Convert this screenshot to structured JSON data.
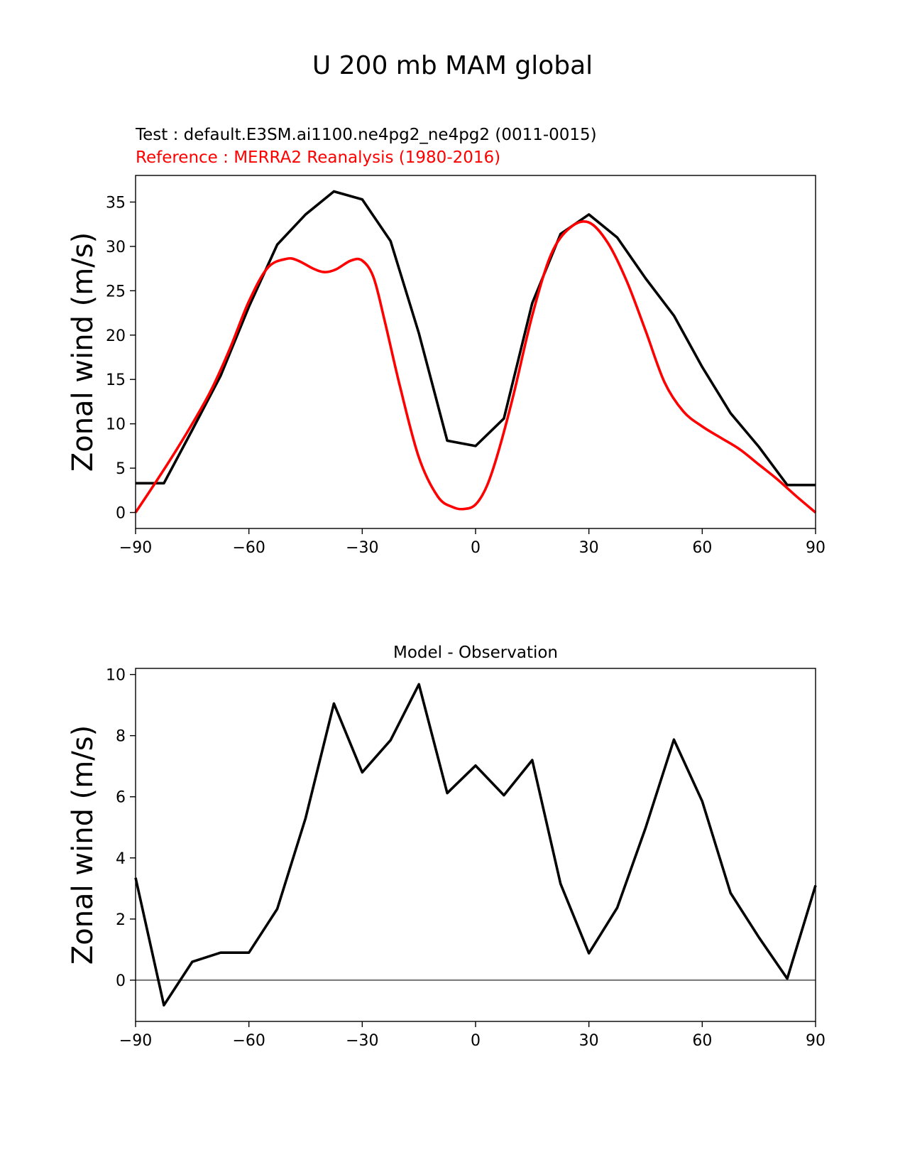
{
  "figure": {
    "title": "U 200 mb MAM global"
  },
  "chart_data": [
    {
      "type": "line",
      "test_label": "Test : default.E3SM.ai1100.ne4pg2_ne4pg2 (0011-0015)",
      "reference_label": "Reference : MERRA2 Reanalysis (1980-2016)",
      "ylabel": "Zonal wind (m/s)",
      "xlabel": "",
      "xlim": [
        -90,
        90
      ],
      "ylim": [
        -1.8,
        38
      ],
      "xticks": [
        -90,
        -60,
        -30,
        0,
        30,
        60,
        90
      ],
      "xtick_labels": [
        "−90",
        "−60",
        "−30",
        "0",
        "30",
        "60",
        "90"
      ],
      "yticks": [
        0,
        5,
        10,
        15,
        20,
        25,
        30,
        35
      ],
      "ytick_labels": [
        "0",
        "5",
        "10",
        "15",
        "20",
        "25",
        "30",
        "35"
      ],
      "colors": {
        "test": "#000000",
        "reference": "#ff0000"
      },
      "series": [
        {
          "name": "Test",
          "key": "test",
          "x": [
            -90,
            -82.5,
            -75,
            -67.5,
            -60,
            -52.5,
            -45,
            -37.5,
            -30,
            -22.5,
            -15,
            -7.5,
            0,
            7.5,
            15,
            22.5,
            30,
            37.5,
            45,
            52.5,
            60,
            67.5,
            75,
            82.5,
            90
          ],
          "values": [
            3.3,
            3.3,
            9.3,
            15.4,
            23.2,
            30.2,
            33.6,
            36.2,
            35.3,
            30.6,
            20.2,
            8.1,
            7.5,
            10.6,
            23.6,
            31.4,
            33.6,
            31.0,
            26.4,
            22.2,
            16.4,
            11.2,
            7.4,
            3.1,
            3.1
          ]
        },
        {
          "name": "Reference",
          "key": "reference",
          "x": [
            -90,
            -85,
            -80,
            -75,
            -70,
            -65,
            -60,
            -55,
            -50,
            -47,
            -43,
            -40,
            -37,
            -33,
            -30,
            -27,
            -24,
            -20,
            -15,
            -10,
            -6,
            -3,
            0,
            3,
            6,
            10,
            15,
            20,
            25,
            30,
            35,
            40,
            45,
            50,
            55,
            60,
            65,
            70,
            75,
            80,
            85,
            90
          ],
          "values": [
            0,
            3.2,
            6.5,
            10.0,
            13.8,
            18.5,
            23.8,
            27.6,
            28.6,
            28.4,
            27.5,
            27.1,
            27.4,
            28.4,
            28.4,
            26.5,
            21.5,
            14.2,
            6.2,
            1.8,
            0.6,
            0.4,
            0.9,
            3.0,
            6.8,
            13.2,
            22.2,
            29.1,
            32.1,
            32.7,
            30.4,
            26.1,
            20.5,
            14.7,
            11.4,
            9.7,
            8.4,
            7.1,
            5.4,
            3.7,
            1.8,
            0
          ]
        }
      ]
    },
    {
      "type": "line",
      "title": "Model - Observation",
      "ylabel": "Zonal wind (m/s)",
      "xlabel": "",
      "xlim": [
        -90,
        90
      ],
      "ylim": [
        -1.35,
        10.2
      ],
      "xticks": [
        -90,
        -60,
        -30,
        0,
        30,
        60,
        90
      ],
      "xtick_labels": [
        "−90",
        "−60",
        "−30",
        "0",
        "30",
        "60",
        "90"
      ],
      "yticks": [
        0,
        2,
        4,
        6,
        8,
        10
      ],
      "ytick_labels": [
        "0",
        "2",
        "4",
        "6",
        "8",
        "10"
      ],
      "zero_line_color": "#808080",
      "colors": {
        "diff": "#000000"
      },
      "series": [
        {
          "name": "Model - Observation",
          "key": "diff",
          "x": [
            -90,
            -82.5,
            -75,
            -67.5,
            -60,
            -52.5,
            -45,
            -37.5,
            -30,
            -22.5,
            -15,
            -7.5,
            0,
            7.5,
            15,
            22.5,
            30,
            37.5,
            45,
            52.5,
            60,
            67.5,
            75,
            82.5,
            90
          ],
          "values": [
            3.35,
            -0.82,
            0.6,
            0.9,
            0.9,
            2.33,
            5.3,
            9.05,
            6.8,
            7.85,
            9.68,
            6.12,
            7.02,
            6.05,
            7.2,
            3.15,
            0.88,
            2.37,
            4.98,
            7.87,
            5.85,
            2.85,
            1.4,
            0.05,
            3.1
          ]
        }
      ]
    }
  ]
}
